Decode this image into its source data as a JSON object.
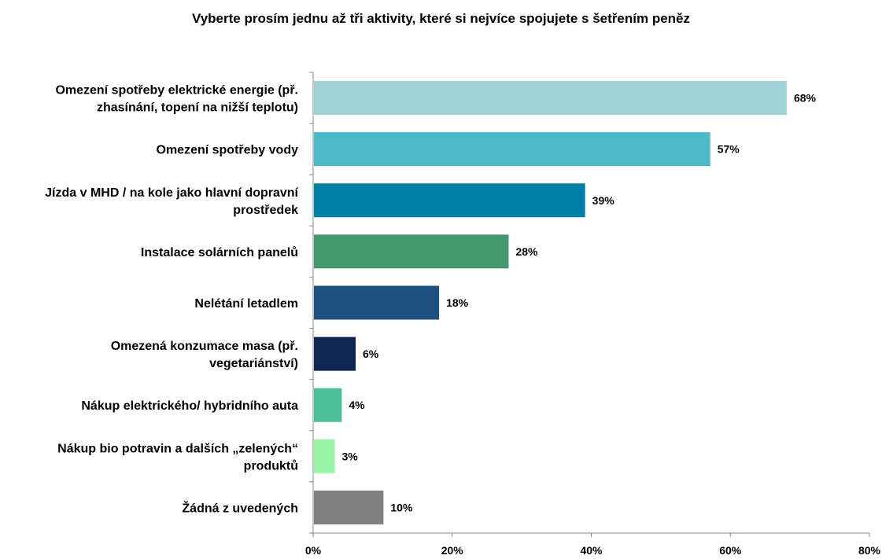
{
  "chart_data": {
    "type": "bar",
    "orientation": "horizontal",
    "title": "Vyberte prosím jednu až tři aktivity, které si nejvíce spojujete s šetřením peněz",
    "categories": [
      [
        "Omezení spotřeby elektrické energie (př.",
        "zhasínání, topení na nižší teplotu)"
      ],
      [
        "Omezení spotřeby vody"
      ],
      [
        "Jízda v MHD / na kole jako hlavní dopravní",
        "prostředek"
      ],
      [
        "Instalace solárních panelů"
      ],
      [
        "Nelétání letadlem"
      ],
      [
        "Omezená konzumace masa (př.",
        "vegetariánství)"
      ],
      [
        "Nákup elektrického/ hybridního auta"
      ],
      [
        "Nákup bio potravin a dalších „zelených“",
        "produktů"
      ],
      [
        "Žádná z uvedených"
      ]
    ],
    "values": [
      68,
      57,
      39,
      28,
      18,
      6,
      4,
      3,
      10
    ],
    "value_labels": [
      "68%",
      "57%",
      "39%",
      "28%",
      "18%",
      "6%",
      "4%",
      "3%",
      "10%"
    ],
    "colors": [
      "#9fd3d8",
      "#4dbac9",
      "#0080a8",
      "#429a6b",
      "#1e517e",
      "#0f2750",
      "#4dbf94",
      "#98f5a6",
      "#808080"
    ],
    "xlim": [
      0,
      80
    ],
    "xticks": [
      0,
      20,
      40,
      60,
      80
    ],
    "xtick_labels": [
      "0%",
      "20%",
      "40%",
      "60%",
      "80%"
    ],
    "grid": false,
    "legend": "none"
  }
}
